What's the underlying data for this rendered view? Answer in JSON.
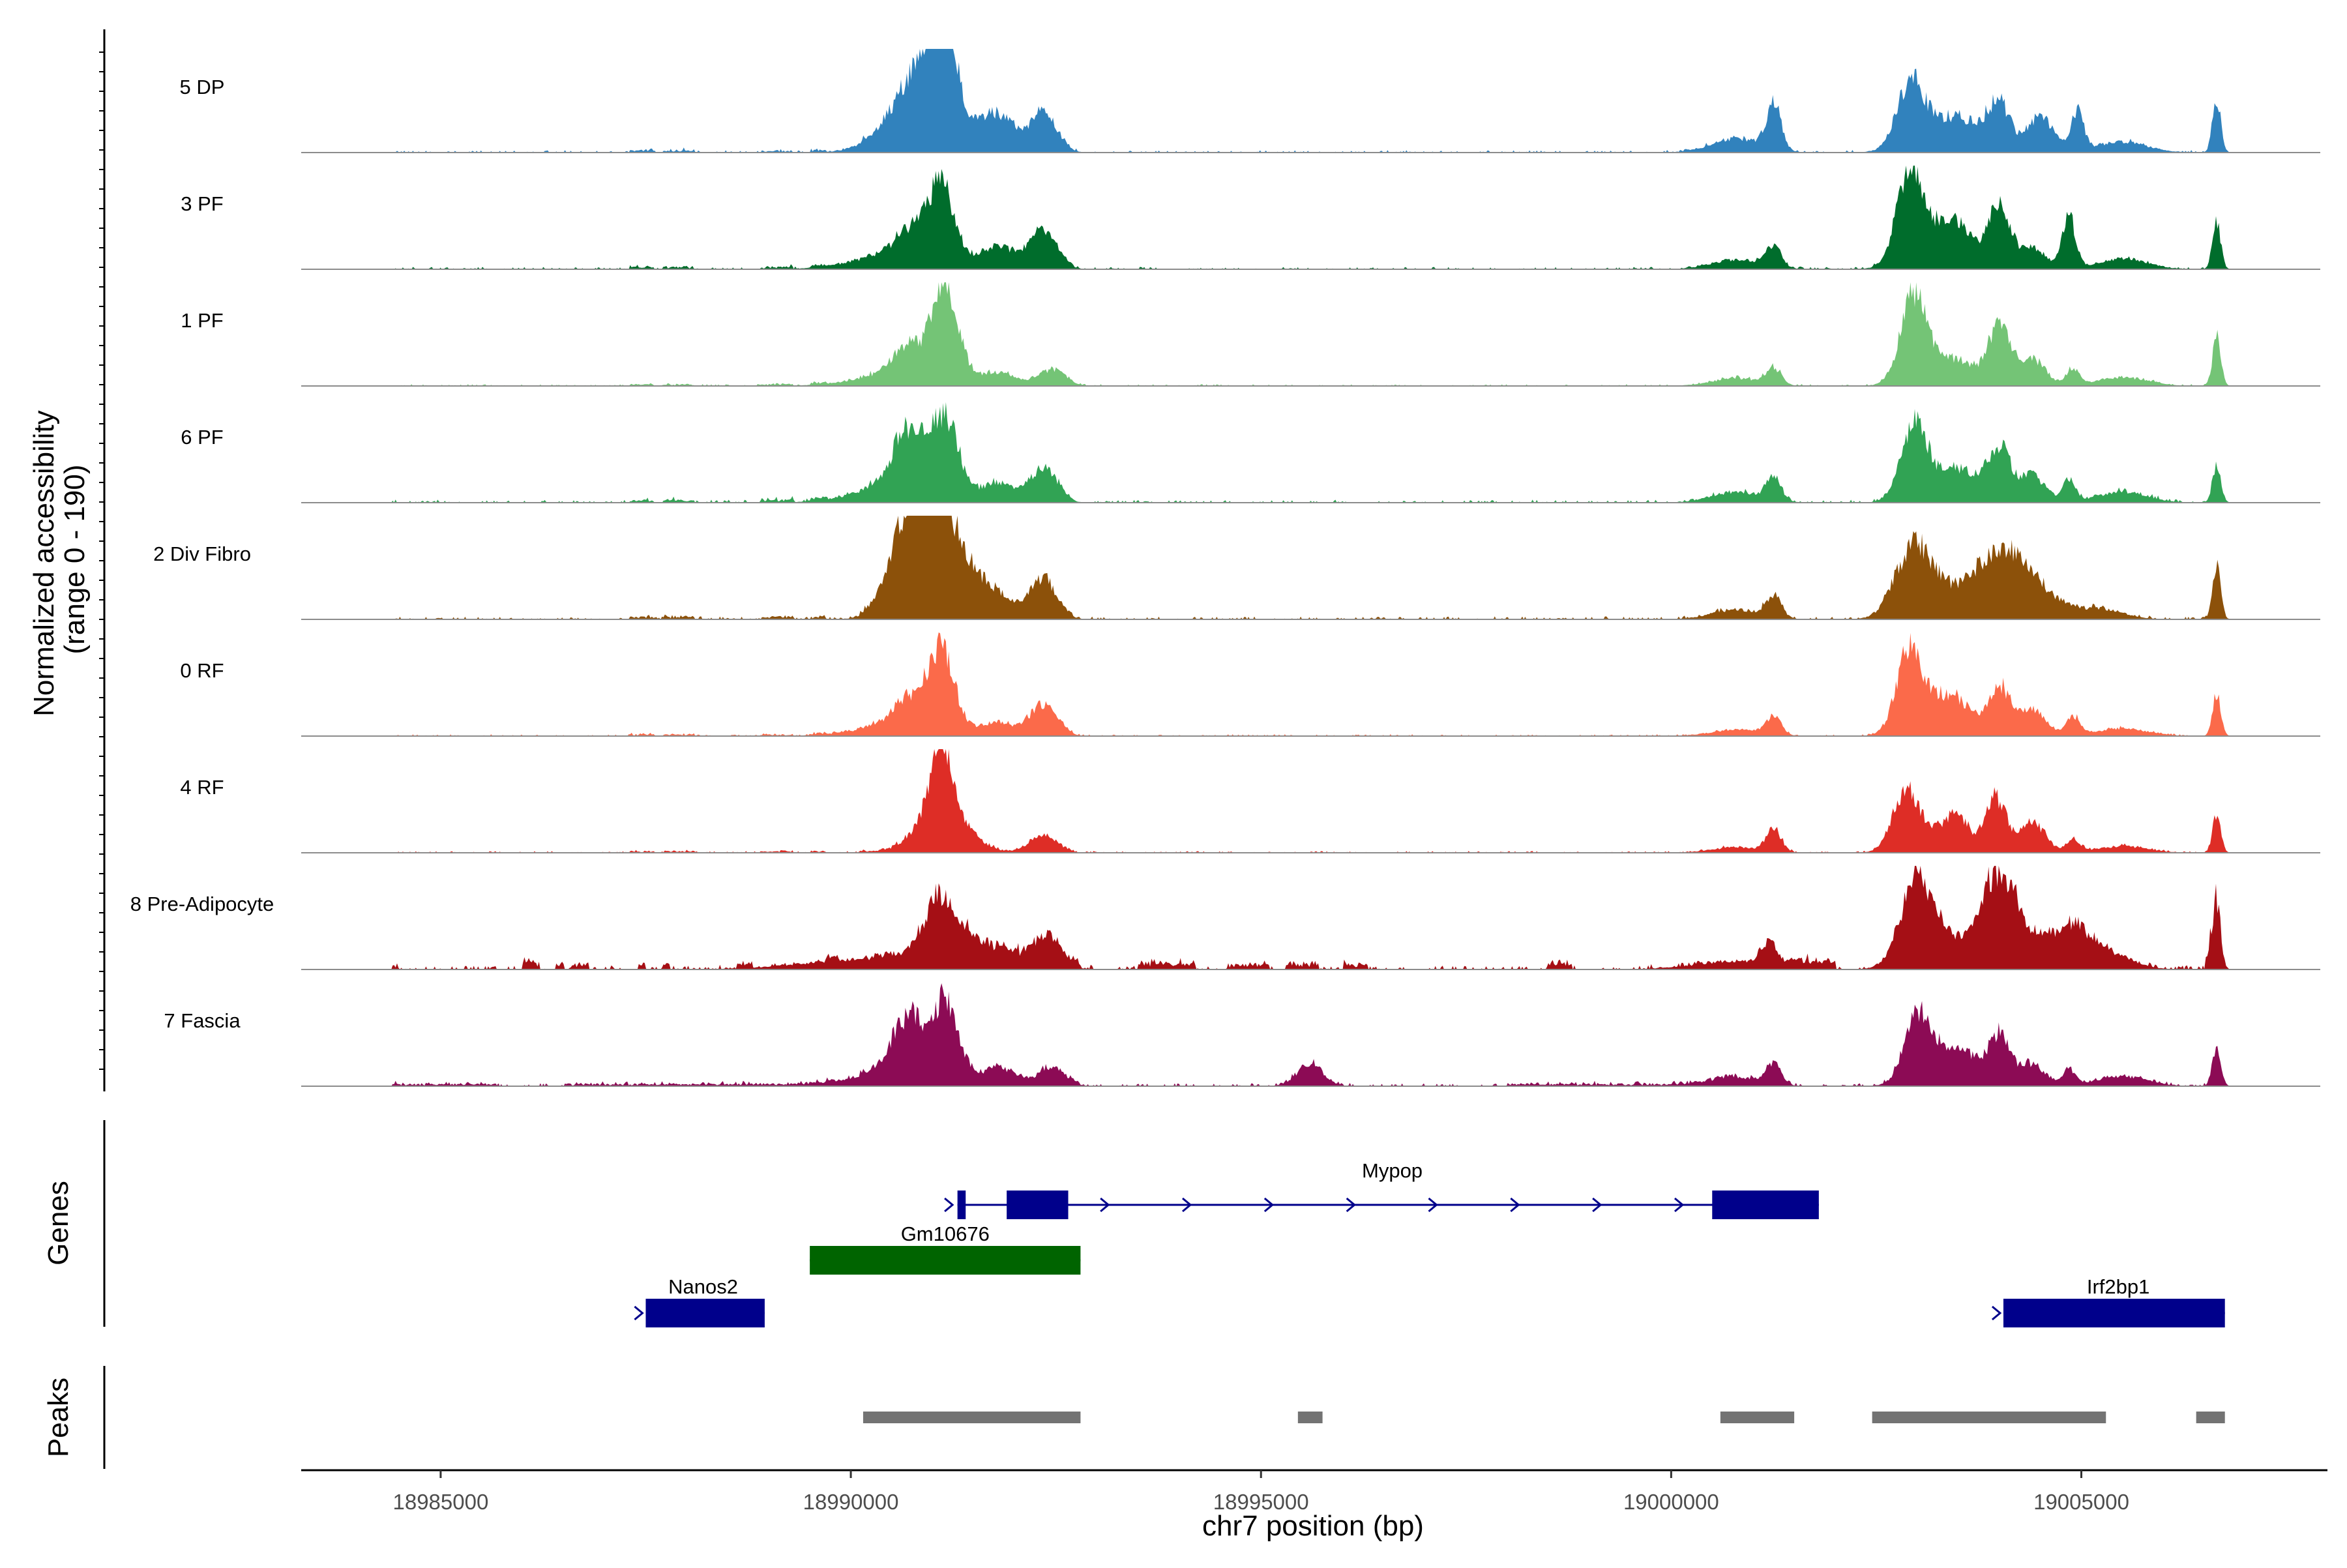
{
  "chart_data": {
    "type": "area",
    "title": "",
    "ylabel_line1": "Normalized accessibility",
    "ylabel_line2": "(range 0 - 190)",
    "xlabel": "chr7 position (bp)",
    "x_range": [
      18983300,
      19008000
    ],
    "y_range": [
      0,
      190
    ],
    "x_ticks": [
      {
        "value": 18985000,
        "label": "18985000"
      },
      {
        "value": 18990000,
        "label": "18990000"
      },
      {
        "value": 18995000,
        "label": "18995000"
      },
      {
        "value": 19000000,
        "label": "19000000"
      },
      {
        "value": 19005000,
        "label": "19005000"
      }
    ],
    "panel_labels": {
      "genes": "Genes",
      "peaks": "Peaks"
    },
    "baseline_range": [
      18983300,
      19006800
    ],
    "noise_range": [
      18984400,
      19006700
    ],
    "series": [
      {
        "name": "5 DP",
        "color": "#3182bd",
        "noise": 4,
        "regions": [
          [
            18987300,
            18987600,
            4
          ],
          [
            18987700,
            18988100,
            4
          ],
          [
            18988900,
            18989300,
            3
          ],
          [
            18989500,
            18989700,
            4
          ],
          [
            18990100,
            18992700,
            3
          ]
        ],
        "peaks": [
          [
            18990700,
            180,
            28
          ],
          [
            18990900,
            400,
            112
          ],
          [
            18991100,
            160,
            175
          ],
          [
            18991800,
            200,
            60
          ],
          [
            18992350,
            160,
            68
          ],
          [
            19001250,
            90,
            81
          ],
          [
            19000800,
            300,
            26
          ],
          [
            19002900,
            150,
            95
          ],
          [
            19003200,
            300,
            60
          ],
          [
            19003650,
            200,
            38
          ],
          [
            19004000,
            130,
            88
          ],
          [
            19004500,
            160,
            64
          ],
          [
            19004950,
            80,
            72
          ],
          [
            19005500,
            300,
            20
          ],
          [
            19006650,
            50,
            97
          ]
        ]
      },
      {
        "name": "3 PF",
        "color": "#006d2c",
        "noise": 4,
        "regions": [
          [
            18987300,
            18987600,
            4
          ],
          [
            18987700,
            18988100,
            4
          ],
          [
            18988900,
            18989300,
            4
          ],
          [
            18989500,
            18989700,
            4
          ],
          [
            18990100,
            18992700,
            4
          ]
        ],
        "peaks": [
          [
            18990700,
            150,
            40
          ],
          [
            18990600,
            500,
            30
          ],
          [
            18991100,
            160,
            140
          ],
          [
            18991800,
            200,
            38
          ],
          [
            18992350,
            160,
            70
          ],
          [
            19001250,
            90,
            40
          ],
          [
            19000800,
            300,
            18
          ],
          [
            19002900,
            150,
            158
          ],
          [
            19003200,
            300,
            58
          ],
          [
            19003500,
            200,
            52
          ],
          [
            19004000,
            130,
            115
          ],
          [
            19004400,
            160,
            40
          ],
          [
            19004850,
            80,
            95
          ],
          [
            19005500,
            300,
            20
          ],
          [
            19006650,
            50,
            85
          ]
        ]
      },
      {
        "name": "1 PF",
        "color": "#74c476",
        "noise": 3,
        "regions": [
          [
            18987300,
            18987600,
            3
          ],
          [
            18987700,
            18988100,
            3
          ],
          [
            18988900,
            18989300,
            3
          ],
          [
            18989500,
            18989700,
            3
          ],
          [
            18990100,
            18992700,
            3
          ]
        ],
        "peaks": [
          [
            18990700,
            180,
            48
          ],
          [
            18990600,
            500,
            22
          ],
          [
            18991150,
            160,
            170
          ],
          [
            18991800,
            200,
            22
          ],
          [
            18992450,
            160,
            28
          ],
          [
            19001250,
            90,
            30
          ],
          [
            19000800,
            300,
            14
          ],
          [
            19002950,
            150,
            145
          ],
          [
            19003250,
            300,
            44
          ],
          [
            19003600,
            200,
            20
          ],
          [
            19004000,
            130,
            105
          ],
          [
            19004400,
            160,
            50
          ],
          [
            19004900,
            80,
            30
          ],
          [
            19005500,
            300,
            16
          ],
          [
            19006650,
            50,
            90
          ]
        ]
      },
      {
        "name": "6 PF",
        "color": "#31a354",
        "noise": 5,
        "regions": [
          [
            18987300,
            18987600,
            5
          ],
          [
            18987700,
            18988100,
            5
          ],
          [
            18988900,
            18989300,
            5
          ],
          [
            18989500,
            18989700,
            5
          ],
          [
            18990100,
            18992700,
            5
          ]
        ],
        "peaks": [
          [
            18990700,
            180,
            100
          ],
          [
            18990600,
            500,
            32
          ],
          [
            18991150,
            160,
            140
          ],
          [
            18991800,
            200,
            32
          ],
          [
            18992350,
            160,
            60
          ],
          [
            19001250,
            90,
            40
          ],
          [
            19000800,
            300,
            20
          ],
          [
            19002950,
            150,
            118
          ],
          [
            19003300,
            300,
            48
          ],
          [
            19003600,
            200,
            30
          ],
          [
            19004000,
            130,
            100
          ],
          [
            19004400,
            160,
            50
          ],
          [
            19004850,
            80,
            40
          ],
          [
            19005500,
            300,
            20
          ],
          [
            19006650,
            50,
            72
          ]
        ]
      },
      {
        "name": "2 Div Fibro",
        "color": "#8c510a",
        "noise": 5,
        "regions": [
          [
            18987300,
            18987600,
            5
          ],
          [
            18987700,
            18988100,
            5
          ],
          [
            18988900,
            18989300,
            5
          ],
          [
            18989500,
            18989700,
            5
          ],
          [
            18990100,
            18992700,
            5
          ]
        ],
        "peaks": [
          [
            18990750,
            260,
            165
          ],
          [
            18991150,
            300,
            165
          ],
          [
            18991800,
            200,
            34
          ],
          [
            18992350,
            160,
            70
          ],
          [
            19001250,
            90,
            40
          ],
          [
            19000800,
            300,
            18
          ],
          [
            19002950,
            220,
            118
          ],
          [
            19003300,
            300,
            40
          ],
          [
            19004000,
            300,
            120
          ],
          [
            19004500,
            250,
            40
          ],
          [
            19005200,
            300,
            20
          ],
          [
            19006650,
            50,
            92
          ]
        ]
      },
      {
        "name": "0 RF",
        "color": "#fb6a4a",
        "noise": 3,
        "regions": [
          [
            18987300,
            18987600,
            3
          ],
          [
            18987700,
            18988100,
            3
          ],
          [
            18988900,
            18989300,
            3
          ],
          [
            18989500,
            18989700,
            3
          ],
          [
            18990100,
            18992700,
            3
          ]
        ],
        "peaks": [
          [
            18990700,
            180,
            45
          ],
          [
            18990650,
            500,
            22
          ],
          [
            18991100,
            160,
            140
          ],
          [
            18991800,
            200,
            22
          ],
          [
            18992350,
            160,
            55
          ],
          [
            19001250,
            90,
            35
          ],
          [
            19000800,
            300,
            12
          ],
          [
            19002900,
            150,
            140
          ],
          [
            19003250,
            300,
            55
          ],
          [
            19003500,
            200,
            30
          ],
          [
            19004000,
            130,
            90
          ],
          [
            19004400,
            160,
            50
          ],
          [
            19004900,
            80,
            35
          ],
          [
            19005500,
            300,
            14
          ],
          [
            19006650,
            50,
            80
          ]
        ]
      },
      {
        "name": "4 RF",
        "color": "#de2d26",
        "noise": 3,
        "regions": [
          [
            18987300,
            18987600,
            3
          ],
          [
            18987700,
            18988100,
            3
          ],
          [
            18988900,
            18989300,
            3
          ],
          [
            18989500,
            18989700,
            3
          ],
          [
            18990100,
            18992700,
            3
          ]
        ],
        "peaks": [
          [
            18990750,
            180,
            22
          ],
          [
            18991100,
            160,
            170
          ],
          [
            18991400,
            200,
            30
          ],
          [
            18992350,
            160,
            30
          ],
          [
            19001250,
            90,
            40
          ],
          [
            19000800,
            300,
            10
          ],
          [
            19002850,
            150,
            95
          ],
          [
            19003200,
            300,
            40
          ],
          [
            19003500,
            120,
            50
          ],
          [
            19003950,
            130,
            100
          ],
          [
            19004400,
            160,
            55
          ],
          [
            19004900,
            80,
            25
          ],
          [
            19005500,
            300,
            12
          ],
          [
            19006650,
            50,
            70
          ]
        ]
      },
      {
        "name": "8 Pre-Adipocyte",
        "color": "#a50f15",
        "noise": 7,
        "regions": [
          [
            18984400,
            18984500,
            8
          ],
          [
            18986000,
            18986200,
            15
          ],
          [
            18986400,
            18986500,
            10
          ],
          [
            18986600,
            18986800,
            10
          ],
          [
            18987400,
            18987500,
            10
          ],
          [
            18987700,
            18987800,
            10
          ],
          [
            18988600,
            18988800,
            10
          ],
          [
            18989700,
            18989850,
            8
          ],
          [
            18990300,
            18990500,
            8
          ],
          [
            18991400,
            18992800,
            15
          ],
          [
            18993500,
            18994200,
            12
          ],
          [
            18994600,
            18995100,
            10
          ],
          [
            18995300,
            18995700,
            12
          ],
          [
            18996000,
            18996300,
            10
          ],
          [
            18998500,
            18998800,
            12
          ],
          [
            19001400,
            19002000,
            15
          ],
          [
            19006500,
            19006700,
            30
          ]
        ],
        "peaks": [
          [
            18990300,
            800,
            20
          ],
          [
            18991100,
            200,
            110
          ],
          [
            18991600,
            500,
            28
          ],
          [
            18992400,
            150,
            42
          ],
          [
            19001200,
            100,
            40
          ],
          [
            19000800,
            500,
            15
          ],
          [
            19003000,
            200,
            145
          ],
          [
            19003500,
            400,
            50
          ],
          [
            19004000,
            200,
            140
          ],
          [
            19004400,
            300,
            50
          ],
          [
            19004900,
            200,
            60
          ],
          [
            19005300,
            300,
            30
          ],
          [
            19006650,
            50,
            110
          ]
        ]
      },
      {
        "name": "7 Fascia",
        "color": "#8c0b55",
        "noise": 5,
        "regions": [
          [
            18984400,
            18985700,
            4
          ],
          [
            18986500,
            18989800,
            4
          ],
          [
            18990100,
            18992800,
            5
          ],
          [
            18998000,
            19000800,
            4
          ]
        ],
        "peaks": [
          [
            18990700,
            180,
            95
          ],
          [
            18990600,
            500,
            30
          ],
          [
            18991150,
            160,
            135
          ],
          [
            18991800,
            200,
            30
          ],
          [
            18992450,
            160,
            30
          ],
          [
            18995600,
            160,
            40
          ],
          [
            19001250,
            90,
            38
          ],
          [
            19000800,
            300,
            16
          ],
          [
            19003000,
            150,
            110
          ],
          [
            19003300,
            300,
            50
          ],
          [
            19003600,
            200,
            30
          ],
          [
            19004000,
            130,
            90
          ],
          [
            19004400,
            160,
            40
          ],
          [
            19004850,
            80,
            30
          ],
          [
            19005500,
            300,
            18
          ],
          [
            19006650,
            50,
            75
          ]
        ]
      }
    ],
    "genes": [
      {
        "name": "Nanos2",
        "row": 3,
        "color": "#00008b",
        "start": 18987500,
        "end": 18988950,
        "exons": [
          [
            18987500,
            18988950
          ]
        ],
        "label_pos": 18988200,
        "direction": "+"
      },
      {
        "name": "Gm10676",
        "row": 2,
        "color": "#006400",
        "start": 18989500,
        "end": 18992800,
        "exons": [
          [
            18989500,
            18992800
          ]
        ],
        "label_pos": 18991150,
        "direction": "none"
      },
      {
        "name": "Mypop",
        "row": 1,
        "color": "#00008b",
        "start": 18991300,
        "end": 19001800,
        "exons": [
          [
            18991300,
            18991400
          ],
          [
            18991900,
            18992650
          ],
          [
            19000500,
            19001800
          ]
        ],
        "label_pos": 18996600,
        "direction": "+"
      },
      {
        "name": "Irf2bp1",
        "row": 3,
        "color": "#00008b",
        "start": 19004050,
        "end": 19006750,
        "exons": [
          [
            19004050,
            19006750
          ]
        ],
        "label_pos": 19005450,
        "direction": "+"
      }
    ],
    "peak_regions": [
      [
        18990150,
        18992800
      ],
      [
        18995450,
        18995750
      ],
      [
        19000600,
        19001500
      ],
      [
        19002450,
        19005300
      ],
      [
        19006400,
        19006750
      ]
    ]
  }
}
